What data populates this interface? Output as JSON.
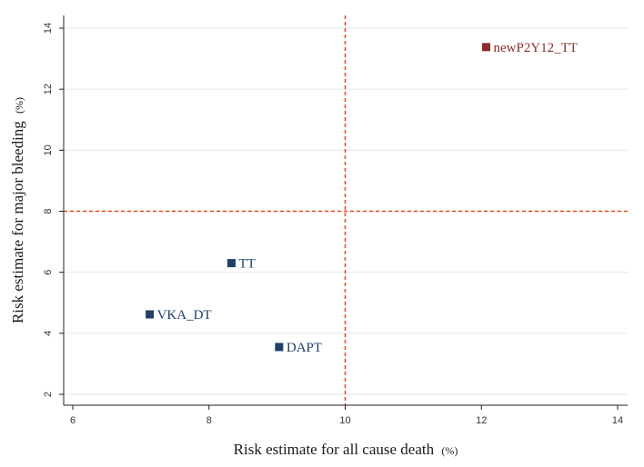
{
  "chart_data": {
    "type": "scatter",
    "title": "",
    "xlabel": "Risk estimate for all cause death",
    "xlabel_unit": "(%)",
    "ylabel": "Risk estimate for major bleeding",
    "ylabel_unit": "(%)",
    "xlim": [
      6,
      14
    ],
    "ylim": [
      2,
      14
    ],
    "xticks": [
      6,
      8,
      10,
      12,
      14
    ],
    "yticks": [
      2,
      4,
      6,
      8,
      10,
      12,
      14
    ],
    "grid": "horizontal",
    "reference_lines": {
      "x": 10,
      "y": 8,
      "color": "#e8461e",
      "style": "dashed"
    },
    "points": [
      {
        "label": "TT",
        "x": 8.33,
        "y": 6.3,
        "color": "#1f3f66"
      },
      {
        "label": "VKA_DT",
        "x": 7.13,
        "y": 4.62,
        "color": "#1f3f66"
      },
      {
        "label": "DAPT",
        "x": 9.03,
        "y": 3.55,
        "color": "#1f3f66"
      },
      {
        "label": "newP2Y12_TT",
        "x": 12.07,
        "y": 13.38,
        "color": "#8b2e2e"
      }
    ]
  }
}
